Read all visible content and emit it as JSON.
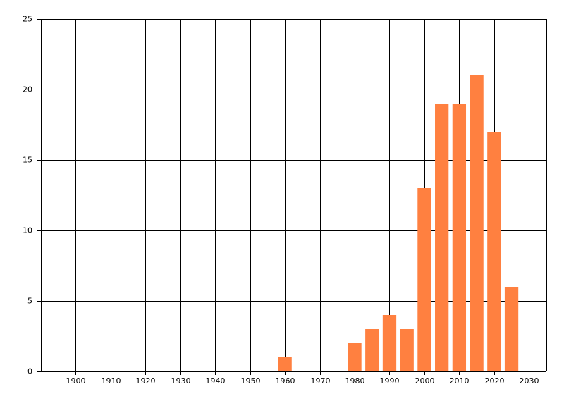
{
  "chart_data": {
    "type": "bar",
    "x": [
      1960,
      1980,
      1985,
      1990,
      1995,
      2000,
      2005,
      2010,
      2015,
      2020,
      2025
    ],
    "values": [
      1,
      2,
      3,
      4,
      3,
      13,
      19,
      19,
      21,
      17,
      6
    ],
    "color": "#ff8040",
    "xlim": [
      1890,
      2035
    ],
    "xticks": [
      1900,
      1910,
      1920,
      1930,
      1940,
      1950,
      1960,
      1970,
      1980,
      1990,
      2000,
      2010,
      2020,
      2030
    ],
    "ylim": [
      0,
      25
    ],
    "yticks": [
      0,
      5,
      10,
      15,
      20,
      25
    ],
    "grid": true
  }
}
